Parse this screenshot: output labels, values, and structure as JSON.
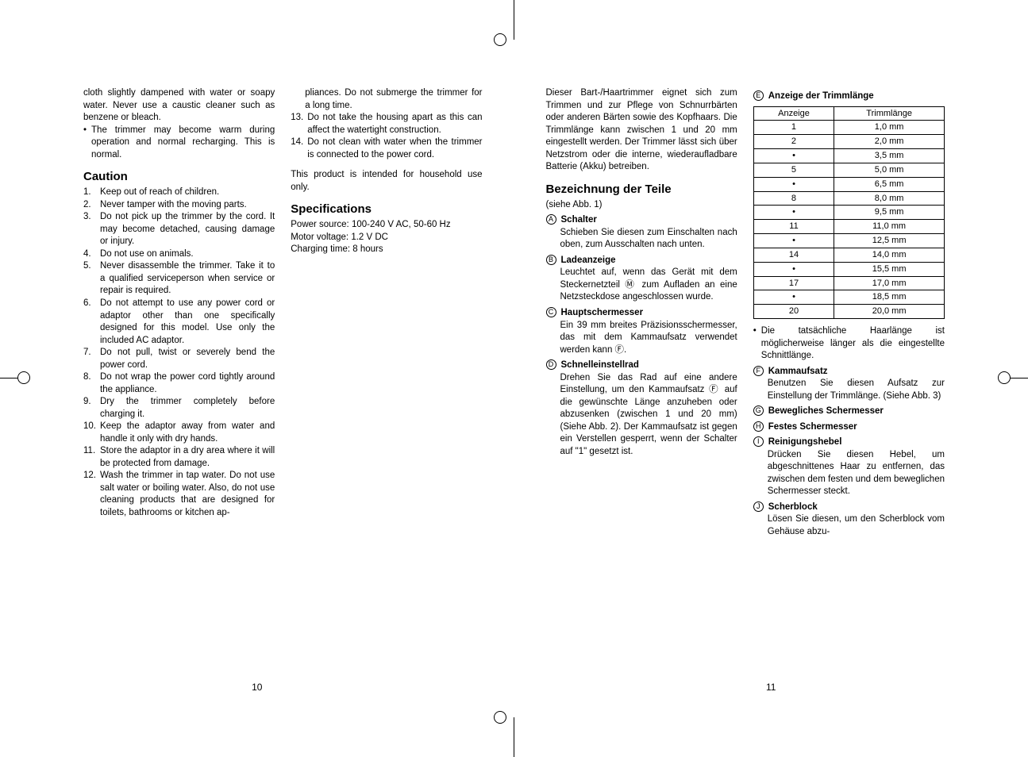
{
  "left_page": {
    "page_num": "10",
    "col1": {
      "intro_para": "cloth slightly dampened with water or soapy water. Never use a caustic cleaner such as benzene or bleach.",
      "bullet1": "The trimmer may become warm during operation and normal recharging. This is normal.",
      "caution_heading": "Caution",
      "cautions": [
        "Keep out of reach of children.",
        "Never tamper with the moving parts.",
        "Do not pick up the trimmer by the cord. It may become detached, causing damage or injury.",
        "Do not use on animals.",
        "Never disassemble the trimmer. Take it to a qualified serviceperson when service or repair is required.",
        "Do not attempt to use any power cord or adaptor other than one specifically designed for this model. Use only the included AC adaptor.",
        "Do not pull, twist or severely bend the power cord.",
        "Do not wrap the power cord tightly around the appliance.",
        "Dry the trimmer completely before charging it.",
        "Keep the adaptor away from water and handle it only with dry hands.",
        "Store the adaptor in a dry area where it will be protected from damage.",
        "Wash the trimmer in tap water. Do not use salt water or boiling water. Also, do not use cleaning products that are designed for toilets, bathrooms or kitchen ap-"
      ]
    },
    "col2": {
      "cont12": "pliances. Do not submerge the trimmer for a long time.",
      "item13": "Do not take the housing apart as this can affect the watertight construction.",
      "item14": "Do not clean with water when the trimmer is connected to the power cord.",
      "household": "This product is intended for household use only.",
      "spec_heading": "Specifications",
      "spec1": "Power source: 100-240 V AC, 50-60 Hz",
      "spec2": "Motor voltage: 1.2 V DC",
      "spec3": "Charging time: 8 hours"
    }
  },
  "right_page": {
    "page_num": "11",
    "col1": {
      "intro": "Dieser Bart-/Haartrimmer eignet sich zum Trimmen und zur Pflege von Schnurrbärten oder anderen Bärten sowie des Kopfhaars. Die Trimmlänge kann zwischen 1 und 20 mm eingestellt werden. Der Trimmer lässt sich über Netzstrom oder die interne, wiederaufladbare Batterie (Akku) betreiben.",
      "heading": "Bezeichnung der Teile",
      "subheading": "(siehe Abb. 1)",
      "parts": [
        {
          "letter": "A",
          "title": "Schalter",
          "body": "Schieben Sie diesen zum Einschalten nach oben, zum Ausschalten nach unten."
        },
        {
          "letter": "B",
          "title": "Ladeanzeige",
          "body": "Leuchtet auf, wenn das Gerät mit dem Steckernetzteil Ⓜ zum Aufladen an eine Netzsteckdose angeschlossen wurde."
        },
        {
          "letter": "C",
          "title": "Hauptschermesser",
          "body": "Ein 39 mm breites Präzisionsschermesser, das mit dem Kammaufsatz verwendet werden kann Ⓕ."
        },
        {
          "letter": "D",
          "title": "Schnelleinstellrad",
          "body": "Drehen Sie das Rad auf eine andere Einstellung, um den Kammaufsatz Ⓕ auf die gewünschte Länge anzuheben oder abzusenken (zwischen 1 und 20 mm) (Siehe Abb. 2). Der Kammaufsatz ist gegen ein Verstellen gesperrt, wenn der Schalter auf \"1\" gesetzt ist."
        }
      ]
    },
    "col2": {
      "partE_letter": "E",
      "partE_title": "Anzeige der Trimmlänge",
      "table": {
        "headers": [
          "Anzeige",
          "Trimmlänge"
        ],
        "rows": [
          [
            "1",
            "1,0 mm"
          ],
          [
            "2",
            "2,0 mm"
          ],
          [
            "•",
            "3,5 mm"
          ],
          [
            "5",
            "5,0 mm"
          ],
          [
            "•",
            "6,5 mm"
          ],
          [
            "8",
            "8,0 mm"
          ],
          [
            "•",
            "9,5 mm"
          ],
          [
            "11",
            "11,0 mm"
          ],
          [
            "•",
            "12,5 mm"
          ],
          [
            "14",
            "14,0 mm"
          ],
          [
            "•",
            "15,5 mm"
          ],
          [
            "17",
            "17,0 mm"
          ],
          [
            "•",
            "18,5 mm"
          ],
          [
            "20",
            "20,0 mm"
          ]
        ]
      },
      "note": "Die tatsächliche Haarlänge ist möglicherweise länger als die eingestellte Schnittlänge.",
      "parts": [
        {
          "letter": "F",
          "title": "Kammaufsatz",
          "body": "Benutzen Sie diesen Aufsatz zur Einstellung der Trimmlänge. (Siehe Abb. 3)"
        },
        {
          "letter": "G",
          "title": "Bewegliches Schermesser",
          "body": ""
        },
        {
          "letter": "H",
          "title": "Festes Schermesser",
          "body": ""
        },
        {
          "letter": "I",
          "title": "Reinigungshebel",
          "body": "Drücken Sie diesen Hebel, um abgeschnittenes Haar zu entfernen, das zwischen dem festen und dem beweglichen Schermesser steckt."
        },
        {
          "letter": "J",
          "title": "Scherblock",
          "body": "Lösen Sie diesen, um den Scherblock vom Gehäuse abzu-"
        }
      ]
    }
  }
}
